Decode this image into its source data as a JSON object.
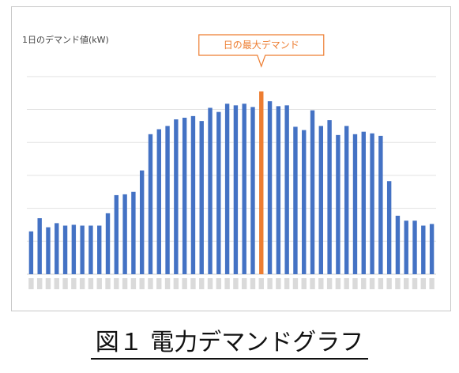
{
  "caption": "図１ 電力デマンドグラフ",
  "chart_data": {
    "type": "bar",
    "title": "1日のデマンド値(kW)",
    "xlabel": "",
    "ylabel": "",
    "ylim": [
      0,
      260
    ],
    "grid": true,
    "bar_color": "#4472C4",
    "highlight_color": "#ED7D31",
    "highlight_index": 27,
    "annotation": "日の最大デマンド",
    "values": [
      52,
      68,
      57,
      62,
      59,
      60,
      59,
      59,
      59,
      74,
      96,
      97,
      100,
      126,
      170,
      176,
      180,
      188,
      190,
      192,
      186,
      202,
      197,
      207,
      205,
      207,
      203,
      222,
      210,
      204,
      205,
      179,
      175,
      199,
      180,
      187,
      169,
      180,
      170,
      173,
      171,
      168,
      113,
      71,
      65,
      65,
      59,
      61
    ]
  }
}
